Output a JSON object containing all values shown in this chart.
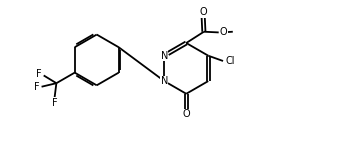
{
  "bg_color": "#ffffff",
  "line_color": "#000000",
  "line_width": 1.3,
  "font_size": 7.0,
  "figsize": [
    3.57,
    1.53
  ],
  "dpi": 100,
  "xlim": [
    0,
    10
  ],
  "ylim": [
    0,
    4.3
  ]
}
